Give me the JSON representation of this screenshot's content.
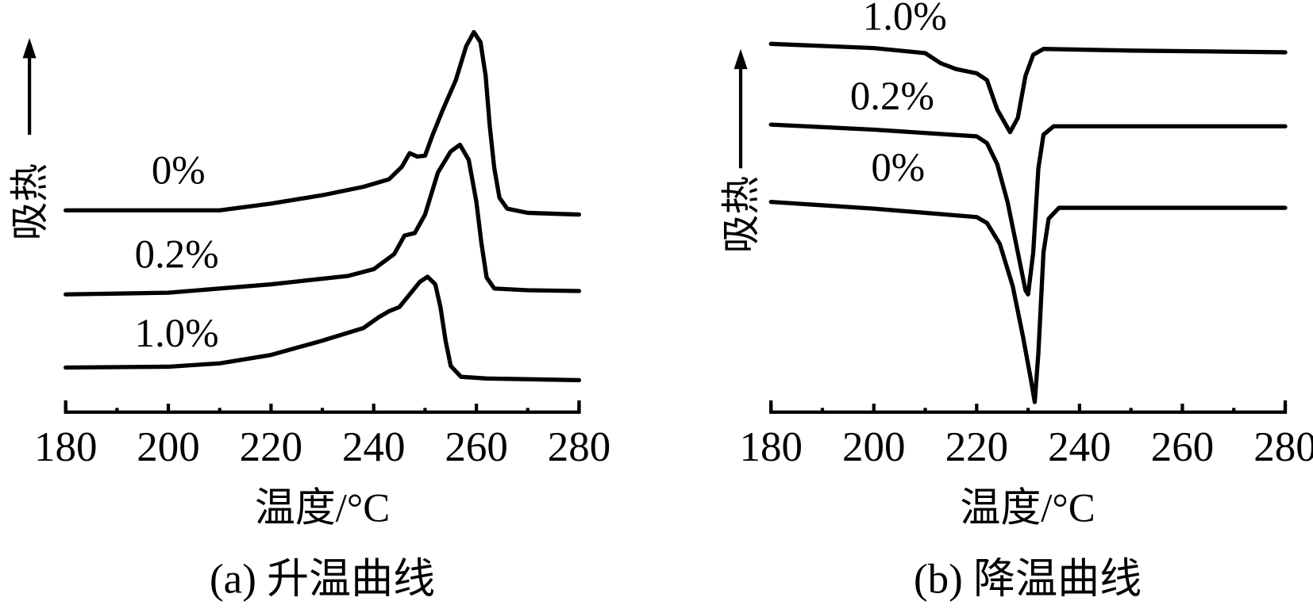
{
  "chart_data": [
    {
      "type": "line",
      "caption": "(a) 升温曲线",
      "xlabel": "温度/°C",
      "ylabel": "吸热",
      "xlim": [
        180,
        280
      ],
      "ylim": [
        0,
        4.6
      ],
      "y_units": "arbitrary (relative heat flow, endotherm up)",
      "xticks": [
        180,
        200,
        220,
        240,
        260,
        280
      ],
      "minor_xticks": [
        190,
        210,
        230,
        250,
        270
      ],
      "grid": false,
      "series": [
        {
          "name": "0%",
          "points": [
            [
              180,
              2.4
            ],
            [
              200,
              2.4
            ],
            [
              210,
              2.4
            ],
            [
              220,
              2.48
            ],
            [
              230,
              2.58
            ],
            [
              238,
              2.68
            ],
            [
              243,
              2.77
            ],
            [
              245.5,
              2.92
            ],
            [
              247,
              3.08
            ],
            [
              248.5,
              3.04
            ],
            [
              250,
              3.05
            ],
            [
              251.5,
              3.3
            ],
            [
              253.5,
              3.6
            ],
            [
              256,
              3.95
            ],
            [
              258,
              4.35
            ],
            [
              259.5,
              4.52
            ],
            [
              260.8,
              4.4
            ],
            [
              261.8,
              4.0
            ],
            [
              262.6,
              3.4
            ],
            [
              263.5,
              2.9
            ],
            [
              264.5,
              2.55
            ],
            [
              266,
              2.42
            ],
            [
              270,
              2.37
            ],
            [
              280,
              2.35
            ]
          ]
        },
        {
          "name": "0.2%",
          "points": [
            [
              180,
              1.4
            ],
            [
              200,
              1.42
            ],
            [
              220,
              1.52
            ],
            [
              235,
              1.62
            ],
            [
              240,
              1.7
            ],
            [
              244,
              1.88
            ],
            [
              246,
              2.1
            ],
            [
              248,
              2.13
            ],
            [
              250,
              2.35
            ],
            [
              252.5,
              2.85
            ],
            [
              255,
              3.1
            ],
            [
              256.8,
              3.18
            ],
            [
              258.5,
              3.0
            ],
            [
              260,
              2.5
            ],
            [
              261,
              2.0
            ],
            [
              262,
              1.6
            ],
            [
              263.5,
              1.47
            ],
            [
              270,
              1.45
            ],
            [
              280,
              1.44
            ]
          ]
        },
        {
          "name": "1.0%",
          "points": [
            [
              180,
              0.53
            ],
            [
              200,
              0.54
            ],
            [
              210,
              0.58
            ],
            [
              220,
              0.68
            ],
            [
              230,
              0.85
            ],
            [
              238,
              1.0
            ],
            [
              241,
              1.13
            ],
            [
              243,
              1.2
            ],
            [
              245,
              1.25
            ],
            [
              247,
              1.4
            ],
            [
              249,
              1.55
            ],
            [
              250.5,
              1.61
            ],
            [
              252,
              1.52
            ],
            [
              253,
              1.25
            ],
            [
              254,
              0.85
            ],
            [
              255,
              0.55
            ],
            [
              257,
              0.42
            ],
            [
              262,
              0.4
            ],
            [
              280,
              0.38
            ]
          ]
        }
      ]
    },
    {
      "type": "line",
      "caption": "(b) 降温曲线",
      "xlabel": "温度/°C",
      "ylabel": "吸热",
      "xlim": [
        180,
        280
      ],
      "ylim": [
        0,
        4.6
      ],
      "y_units": "arbitrary (relative heat flow, endotherm up)",
      "xticks": [
        180,
        200,
        220,
        240,
        260,
        280
      ],
      "minor_xticks": [
        190,
        210,
        230,
        250,
        270
      ],
      "grid": false,
      "series": [
        {
          "name": "1.0%",
          "points": [
            [
              180,
              4.38
            ],
            [
              200,
              4.33
            ],
            [
              210,
              4.27
            ],
            [
              213,
              4.15
            ],
            [
              216,
              4.08
            ],
            [
              220,
              4.03
            ],
            [
              222,
              3.95
            ],
            [
              224,
              3.6
            ],
            [
              226.5,
              3.33
            ],
            [
              228,
              3.5
            ],
            [
              229.5,
              4.0
            ],
            [
              231,
              4.25
            ],
            [
              233,
              4.32
            ],
            [
              250,
              4.3
            ],
            [
              280,
              4.28
            ]
          ]
        },
        {
          "name": "0.2%",
          "points": [
            [
              180,
              3.42
            ],
            [
              200,
              3.36
            ],
            [
              220,
              3.28
            ],
            [
              222,
              3.2
            ],
            [
              224,
              2.95
            ],
            [
              226,
              2.5
            ],
            [
              228,
              1.9
            ],
            [
              229.5,
              1.45
            ],
            [
              230,
              1.4
            ],
            [
              231,
              1.9
            ],
            [
              232,
              2.9
            ],
            [
              233,
              3.3
            ],
            [
              235,
              3.4
            ],
            [
              280,
              3.4
            ]
          ]
        },
        {
          "name": "0%",
          "points": [
            [
              180,
              2.5
            ],
            [
              200,
              2.42
            ],
            [
              220,
              2.32
            ],
            [
              222,
              2.25
            ],
            [
              224.5,
              2.0
            ],
            [
              227,
              1.5
            ],
            [
              229,
              0.9
            ],
            [
              230.5,
              0.4
            ],
            [
              231.3,
              0.12
            ],
            [
              232,
              0.7
            ],
            [
              233,
              1.9
            ],
            [
              234,
              2.3
            ],
            [
              236,
              2.43
            ],
            [
              280,
              2.43
            ]
          ]
        }
      ]
    }
  ]
}
